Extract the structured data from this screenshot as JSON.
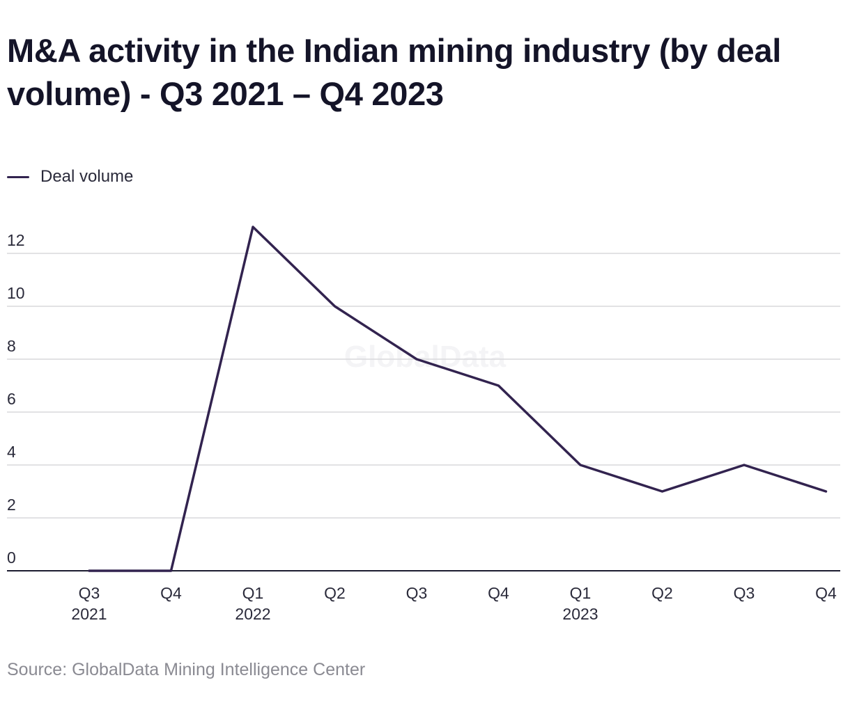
{
  "title": "M&A activity in the Indian mining industry (by deal volume) - Q3 2021 – Q4 2023",
  "source": "Source: GlobalData Mining Intelligence Center",
  "watermark": "GlobalData",
  "colors": {
    "line": "#32234f",
    "grid": "#d8d8dc",
    "axis": "#1b1b2f"
  },
  "chart_data": {
    "type": "line",
    "categories": [
      "Q3 2021",
      "Q4 2021",
      "Q1 2022",
      "Q2 2022",
      "Q3 2022",
      "Q4 2022",
      "Q1 2023",
      "Q2 2023",
      "Q3 2023",
      "Q4 2023"
    ],
    "tick_labels": [
      [
        "Q3",
        "2021"
      ],
      [
        "Q4"
      ],
      [
        "Q1",
        "2022"
      ],
      [
        "Q2"
      ],
      [
        "Q3"
      ],
      [
        "Q4"
      ],
      [
        "Q1",
        "2023"
      ],
      [
        "Q2"
      ],
      [
        "Q3"
      ],
      [
        "Q4"
      ]
    ],
    "series": [
      {
        "name": "Deal volume",
        "values": [
          0,
          0,
          13,
          10,
          8,
          7,
          4,
          3,
          4,
          3
        ]
      }
    ],
    "yticks": [
      0,
      2,
      4,
      6,
      8,
      10,
      12
    ],
    "ylim": [
      0,
      13
    ],
    "grid": true,
    "legend": "top-left"
  }
}
